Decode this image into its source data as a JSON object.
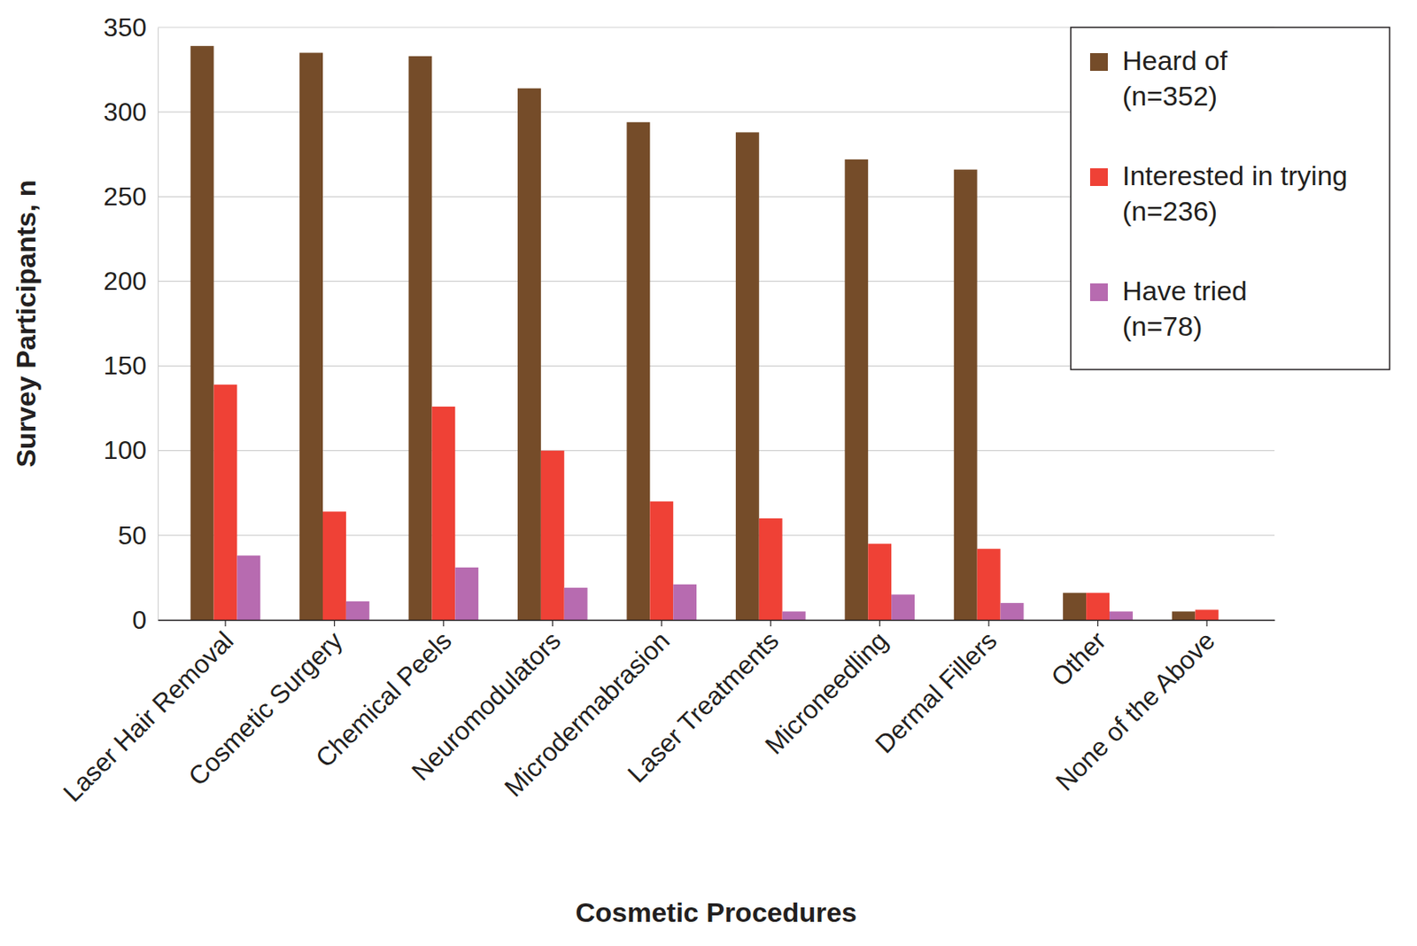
{
  "chart_data": {
    "type": "bar",
    "xlabel": "Cosmetic Procedures",
    "ylabel": "Survey Participants, n",
    "categories": [
      "Laser Hair Removal",
      "Cosmetic Surgery",
      "Chemical Peels",
      "Neuromodulators",
      "Microdermabrasion",
      "Laser Treatments",
      "Microneedling",
      "Dermal Fillers",
      "Other",
      "None of the Above"
    ],
    "series": [
      {
        "name": "Heard of (n=352)",
        "color": "#754c29",
        "values": [
          339,
          335,
          333,
          314,
          294,
          288,
          272,
          266,
          16,
          5
        ]
      },
      {
        "name": "Interested in trying (n=236)",
        "color": "#ef4136",
        "values": [
          139,
          64,
          126,
          100,
          70,
          60,
          45,
          42,
          16,
          6
        ]
      },
      {
        "name": "Have tried (n=78)",
        "color": "#b76bb0",
        "values": [
          38,
          11,
          31,
          19,
          21,
          5,
          15,
          10,
          5,
          0
        ]
      }
    ],
    "ylim": [
      0,
      350
    ],
    "yticks": [
      0,
      50,
      100,
      150,
      200,
      250,
      300,
      350
    ],
    "grid": true,
    "legend": "upper right"
  }
}
